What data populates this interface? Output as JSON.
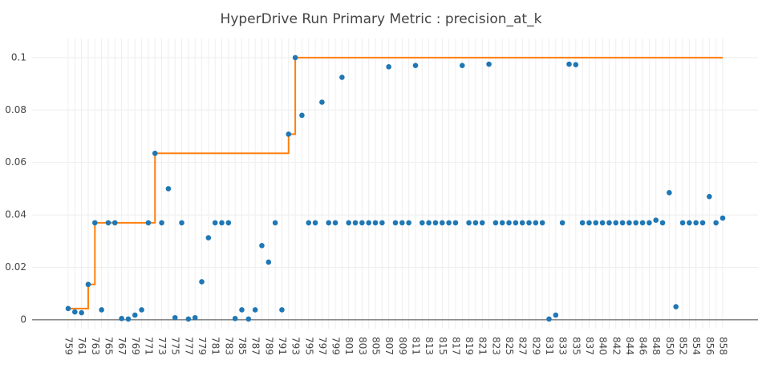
{
  "chart_data": {
    "type": "scatter",
    "title": "HyperDrive Run Primary Metric : precision_at_k",
    "categories": [
      "759",
      null,
      "761",
      null,
      "763",
      null,
      "765",
      null,
      "767",
      null,
      "769",
      null,
      "771",
      null,
      "773",
      null,
      "775",
      null,
      "777",
      null,
      "779",
      null,
      "781",
      null,
      "783",
      null,
      "785",
      null,
      "787",
      null,
      "789",
      null,
      "791",
      null,
      "793",
      null,
      "795",
      null,
      "797",
      null,
      "799",
      null,
      "801",
      null,
      "803",
      null,
      "805",
      null,
      "807",
      null,
      "809",
      null,
      "811",
      null,
      "813",
      null,
      "815",
      null,
      "817",
      null,
      "819",
      null,
      "821",
      null,
      "823",
      null,
      "825",
      null,
      "827",
      null,
      "829",
      null,
      "831",
      null,
      "833",
      null,
      "835",
      null,
      "837",
      null,
      "840",
      null,
      "842",
      null,
      "844",
      null,
      "846",
      null,
      "848",
      null,
      "850",
      null,
      "852",
      null,
      "854",
      null,
      "856",
      null,
      "858"
    ],
    "series": [
      {
        "color": "#1f77b4",
        "values": [
          0.0043,
          0.003,
          0.0027,
          0.0135,
          0.037,
          0.0038,
          0.037,
          0.037,
          0.0005,
          0.0003,
          0.0018,
          0.0038,
          0.037,
          0.0635,
          0.037,
          0.05,
          0.0008,
          0.037,
          0.0003,
          0.0008,
          0.0145,
          0.0313,
          0.037,
          0.037,
          0.037,
          0.0005,
          0.0038,
          0.0003,
          0.0038,
          0.0283,
          0.022,
          0.037,
          0.0038,
          0.0708,
          0.1,
          0.078,
          0.037,
          0.037,
          0.083,
          0.037,
          0.037,
          0.0925,
          0.037,
          0.037,
          0.037,
          0.037,
          0.037,
          0.037,
          0.0965,
          0.037,
          0.037,
          0.037,
          0.097,
          0.037,
          0.037,
          0.037,
          0.037,
          0.037,
          0.037,
          0.097,
          0.037,
          0.037,
          0.037,
          0.0975,
          0.037,
          0.037,
          0.037,
          0.037,
          0.037,
          0.037,
          0.037,
          0.037,
          0.0003,
          0.0018,
          0.037,
          0.0975,
          0.0973,
          0.037,
          0.037,
          0.037,
          0.037,
          0.037,
          0.037,
          0.037,
          0.037,
          0.037,
          0.037,
          0.037,
          0.038,
          0.037,
          0.0485,
          0.005,
          0.037,
          0.037,
          0.037,
          0.037,
          0.047,
          0.037,
          0.0388
        ]
      },
      {
        "color": "#ff7f0e",
        "line_shape": "hv",
        "values": [
          0.0043,
          0.0043,
          0.0043,
          0.0135,
          0.037,
          0.037,
          0.037,
          0.037,
          0.037,
          0.037,
          0.037,
          0.037,
          0.037,
          0.0635,
          0.0635,
          0.0635,
          0.0635,
          0.0635,
          0.0635,
          0.0635,
          0.0635,
          0.0635,
          0.0635,
          0.0635,
          0.0635,
          0.0635,
          0.0635,
          0.0635,
          0.0635,
          0.0635,
          0.0635,
          0.0635,
          0.0635,
          0.0708,
          0.1,
          0.1,
          0.1,
          0.1,
          0.1,
          0.1,
          0.1,
          0.1,
          0.1,
          0.1,
          0.1,
          0.1,
          0.1,
          0.1,
          0.1,
          0.1,
          0.1,
          0.1,
          0.1,
          0.1,
          0.1,
          0.1,
          0.1,
          0.1,
          0.1,
          0.1,
          0.1,
          0.1,
          0.1,
          0.1,
          0.1,
          0.1,
          0.1,
          0.1,
          0.1,
          0.1,
          0.1,
          0.1,
          0.1,
          0.1,
          0.1,
          0.1,
          0.1,
          0.1,
          0.1,
          0.1,
          0.1,
          0.1,
          0.1,
          0.1,
          0.1,
          0.1,
          0.1,
          0.1,
          0.1,
          0.1,
          0.1,
          0.1,
          0.1,
          0.1,
          0.1,
          0.1,
          0.1,
          0.1,
          0.1
        ]
      }
    ],
    "ylim": [
      -0.0034,
      0.1073
    ],
    "yticks": [
      0,
      0.02,
      0.04,
      0.06,
      0.08,
      0.1
    ],
    "grid": true
  }
}
